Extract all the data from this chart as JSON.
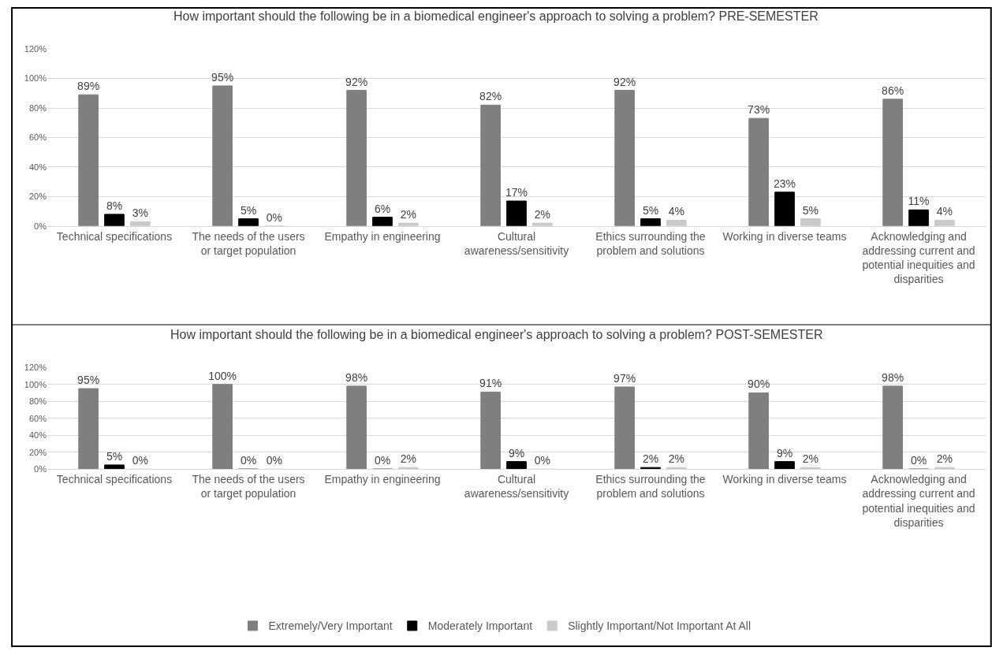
{
  "chart_data": [
    {
      "type": "bar",
      "title": "How important should the following be in a biomedical engineer's approach to solving a problem? PRE-SEMESTER",
      "categories": [
        "Technical specifications",
        "The needs of the users or target population",
        "Empathy in engineering",
        "Cultural awareness/sensitivity",
        "Ethics surrounding the problem and solutions",
        "Working in diverse teams",
        "Acknowledging and addressing current and potential inequities and disparities"
      ],
      "series": [
        {
          "name": "Extremely/Very Important",
          "color": "#7f7f7f",
          "values": [
            89,
            95,
            92,
            82,
            92,
            73,
            86
          ],
          "value_labels": [
            "89%",
            "95%",
            "92%",
            "82%",
            "92%",
            "73%",
            "86%"
          ]
        },
        {
          "name": "Moderately Important",
          "color": "#000000",
          "values": [
            8,
            5,
            6,
            17,
            5,
            23,
            11
          ],
          "value_labels": [
            "8%",
            "5%",
            "6%",
            "17%",
            "5%",
            "23%",
            "11%"
          ]
        },
        {
          "name": "Slightly Important/Not Important At All",
          "color": "#c9c9c9",
          "values": [
            3,
            0,
            2,
            2,
            4,
            5,
            4
          ],
          "value_labels": [
            "3%",
            "0%",
            "2%",
            "2%",
            "4%",
            "5%",
            "4%"
          ]
        }
      ],
      "ylim": [
        0,
        120
      ],
      "yticks": [
        {
          "value": 0,
          "label": "0%"
        },
        {
          "value": 20,
          "label": "20%"
        },
        {
          "value": 40,
          "label": "40%"
        },
        {
          "value": 60,
          "label": "60%"
        },
        {
          "value": 80,
          "label": "80%"
        },
        {
          "value": 100,
          "label": "100%"
        },
        {
          "value": 120,
          "label": "120%"
        }
      ],
      "grid": "y",
      "legend": "bottom"
    },
    {
      "type": "bar",
      "title": "How important should the following be in a biomedical engineer's approach to solving a problem? POST-SEMESTER",
      "categories": [
        "Technical specifications",
        "The needs of the users or target population",
        "Empathy in engineering",
        "Cultural awareness/sensitivity",
        "Ethics surrounding the problem and solutions",
        "Working in diverse teams",
        "Acknowledging and addressing current and potential inequities and disparities"
      ],
      "series": [
        {
          "name": "Extremely/Very Important",
          "color": "#7f7f7f",
          "values": [
            95,
            100,
            98,
            91,
            97,
            90,
            98
          ],
          "value_labels": [
            "95%",
            "100%",
            "98%",
            "91%",
            "97%",
            "90%",
            "98%"
          ]
        },
        {
          "name": "Moderately Important",
          "color": "#000000",
          "values": [
            5,
            0,
            0,
            9,
            2,
            9,
            0
          ],
          "value_labels": [
            "5%",
            "0%",
            "0%",
            "9%",
            "2%",
            "9%",
            "0%"
          ]
        },
        {
          "name": "Slightly Important/Not Important At All",
          "color": "#c9c9c9",
          "values": [
            0,
            0,
            2,
            0,
            2,
            2,
            2
          ],
          "value_labels": [
            "0%",
            "0%",
            "2%",
            "0%",
            "2%",
            "2%",
            "2%"
          ]
        }
      ],
      "ylim": [
        0,
        120
      ],
      "yticks": [
        {
          "value": 0,
          "label": "0%"
        },
        {
          "value": 20,
          "label": "20%"
        },
        {
          "value": 40,
          "label": "40%"
        },
        {
          "value": 60,
          "label": "60%"
        },
        {
          "value": 80,
          "label": "80%"
        },
        {
          "value": 100,
          "label": "100%"
        },
        {
          "value": 120,
          "label": "120%"
        }
      ],
      "grid": "y",
      "legend": "bottom"
    }
  ]
}
